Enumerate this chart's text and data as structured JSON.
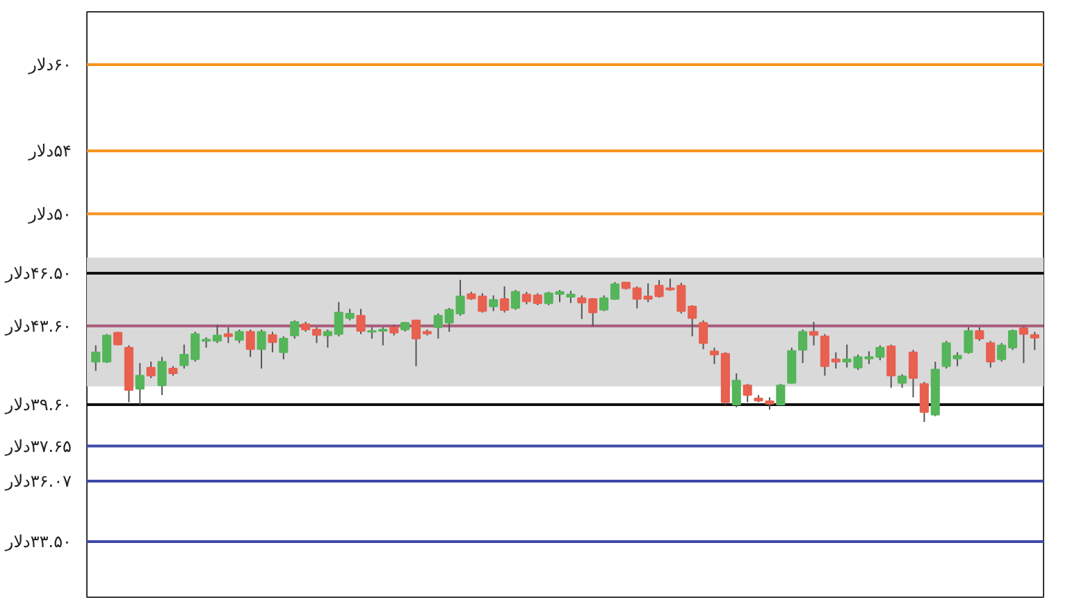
{
  "chart_data": {
    "type": "candlestick",
    "log": true,
    "grid": false,
    "ylim": [
      31.3,
      64
    ],
    "yticks": [
      {
        "value": 60,
        "label": "۶۰دلار"
      },
      {
        "value": 54,
        "label": "۵۴دلار"
      },
      {
        "value": 50,
        "label": "۵۰دلار"
      },
      {
        "value": 46.5,
        "label": "۴۶.۵۰دلار"
      },
      {
        "value": 43.6,
        "label": "۴۳.۶۰دلار"
      },
      {
        "value": 39.6,
        "label": "۳۹.۶۰دلار"
      },
      {
        "value": 37.65,
        "label": "۳۷.۶۵دلار"
      },
      {
        "value": 36.07,
        "label": "۳۶.۰۷دلار"
      },
      {
        "value": 33.5,
        "label": "۳۳.۵۰دلار"
      }
    ],
    "bands": [
      {
        "axis": "y",
        "from": 40.5,
        "to": 47.4,
        "color": "#d9d9d9"
      }
    ],
    "ref_lines": [
      {
        "axis": "y",
        "value": 60,
        "color": "#f7941d"
      },
      {
        "axis": "y",
        "value": 54,
        "color": "#f7941d"
      },
      {
        "axis": "y",
        "value": 50,
        "color": "#f7941d"
      },
      {
        "axis": "y",
        "value": 46.5,
        "color": "#111111"
      },
      {
        "axis": "y",
        "value": 43.6,
        "color": "#a85a7a"
      },
      {
        "axis": "y",
        "value": 39.6,
        "color": "#111111"
      },
      {
        "axis": "y",
        "value": 37.65,
        "color": "#3f4aa8"
      },
      {
        "axis": "y",
        "value": 36.07,
        "color": "#3f4aa8"
      },
      {
        "axis": "y",
        "value": 33.5,
        "color": "#3f4aa8"
      }
    ],
    "categories": [
      null,
      null,
      null,
      null,
      null,
      null,
      null,
      null,
      null,
      null,
      null,
      null,
      null,
      null,
      null,
      null,
      null,
      null,
      null,
      null,
      null,
      null,
      null,
      null,
      null,
      null,
      null,
      null,
      null,
      null,
      null,
      null,
      null,
      null,
      null,
      null,
      null,
      null,
      null,
      null,
      null,
      null,
      null,
      null,
      null,
      null,
      null,
      null,
      null,
      null,
      null,
      null,
      null,
      null,
      null,
      null,
      null,
      null,
      null,
      null,
      null,
      null,
      null,
      null,
      null,
      null,
      null,
      null,
      null,
      null,
      null,
      null,
      null,
      null,
      null,
      null,
      null,
      null,
      null,
      null,
      null,
      null,
      null,
      null,
      null,
      null
    ],
    "ohlc": [
      [
        41.74,
        42.58,
        41.27,
        42.22
      ],
      [
        41.74,
        43.17,
        41.67,
        43.1
      ],
      [
        43.24,
        43.29,
        42.58,
        42.62
      ],
      [
        42.46,
        42.58,
        39.72,
        40.32
      ],
      [
        40.38,
        41.67,
        39.6,
        41.03
      ],
      [
        41.44,
        41.74,
        40.91,
        41.03
      ],
      [
        40.55,
        41.98,
        40.07,
        41.74
      ],
      [
        41.39,
        41.51,
        41.03,
        41.15
      ],
      [
        41.55,
        42.62,
        41.39,
        42.1
      ],
      [
        41.86,
        43.29,
        41.74,
        43.17
      ],
      [
        42.81,
        43.0,
        42.46,
        42.88
      ],
      [
        42.81,
        43.65,
        42.7,
        43.1
      ],
      [
        43.17,
        43.53,
        42.7,
        43.05
      ],
      [
        42.86,
        43.41,
        42.7,
        43.29
      ],
      [
        43.29,
        43.41,
        41.98,
        42.38
      ],
      [
        42.38,
        43.41,
        41.39,
        43.29
      ],
      [
        43.12,
        43.29,
        42.22,
        42.74
      ],
      [
        42.22,
        43.05,
        41.86,
        42.93
      ],
      [
        43.1,
        43.9,
        42.93,
        43.82
      ],
      [
        43.7,
        43.82,
        43.29,
        43.41
      ],
      [
        43.41,
        43.53,
        42.7,
        43.12
      ],
      [
        43.1,
        43.41,
        42.46,
        43.29
      ],
      [
        43.17,
        44.89,
        43.05,
        44.32
      ],
      [
        44.02,
        44.52,
        43.9,
        44.27
      ],
      [
        44.15,
        44.52,
        43.17,
        43.34
      ],
      [
        43.29,
        43.53,
        42.93,
        43.34
      ],
      [
        43.34,
        43.53,
        42.58,
        43.41
      ],
      [
        43.53,
        43.65,
        43.1,
        43.24
      ],
      [
        43.41,
        43.82,
        43.3,
        43.77
      ],
      [
        43.9,
        43.9,
        41.51,
        42.93
      ],
      [
        43.29,
        43.41,
        43.1,
        43.2
      ],
      [
        43.53,
        44.27,
        42.93,
        44.15
      ],
      [
        43.77,
        44.57,
        43.29,
        44.47
      ],
      [
        44.27,
        46.12,
        44.15,
        45.21
      ],
      [
        45.33,
        45.46,
        45.01,
        45.08
      ],
      [
        45.21,
        45.38,
        44.32,
        44.4
      ],
      [
        44.65,
        45.26,
        44.4,
        45.01
      ],
      [
        45.06,
        45.76,
        44.32,
        44.45
      ],
      [
        44.57,
        45.56,
        44.47,
        45.46
      ],
      [
        45.31,
        45.46,
        44.77,
        44.93
      ],
      [
        45.26,
        45.38,
        44.72,
        44.82
      ],
      [
        44.82,
        45.46,
        44.72,
        45.38
      ],
      [
        45.33,
        45.56,
        44.89,
        45.46
      ],
      [
        45.18,
        45.51,
        44.84,
        45.31
      ],
      [
        45.11,
        45.26,
        43.97,
        44.86
      ],
      [
        45.06,
        45.11,
        43.58,
        44.32
      ],
      [
        44.47,
        45.26,
        44.4,
        45.11
      ],
      [
        45.06,
        46.0,
        45.01,
        45.88
      ],
      [
        45.98,
        46.0,
        45.58,
        45.66
      ],
      [
        45.66,
        45.76,
        44.55,
        45.06
      ],
      [
        45.21,
        45.93,
        44.89,
        45.06
      ],
      [
        45.81,
        46.12,
        45.14,
        45.21
      ],
      [
        45.66,
        46.2,
        45.51,
        45.58
      ],
      [
        45.81,
        45.96,
        44.27,
        44.4
      ],
      [
        44.65,
        44.72,
        43.05,
        44.02
      ],
      [
        43.77,
        43.9,
        42.38,
        42.7
      ],
      [
        42.27,
        42.46,
        41.62,
        42.1
      ],
      [
        42.15,
        42.22,
        39.6,
        39.72
      ],
      [
        39.6,
        41.15,
        39.48,
        40.79
      ],
      [
        40.55,
        40.62,
        39.72,
        40.07
      ],
      [
        39.91,
        40.07,
        39.72,
        39.8
      ],
      [
        39.77,
        39.96,
        39.36,
        39.65
      ],
      [
        39.6,
        40.62,
        39.6,
        40.55
      ],
      [
        40.67,
        42.46,
        40.62,
        42.29
      ],
      [
        42.34,
        43.41,
        41.67,
        43.29
      ],
      [
        43.29,
        43.82,
        42.58,
        43.12
      ],
      [
        43.05,
        43.17,
        41.03,
        41.51
      ],
      [
        41.86,
        42.22,
        41.39,
        41.74
      ],
      [
        41.74,
        42.62,
        41.44,
        41.86
      ],
      [
        41.44,
        42.1,
        41.32,
        41.98
      ],
      [
        41.9,
        42.27,
        41.62,
        41.98
      ],
      [
        41.98,
        42.58,
        41.81,
        42.46
      ],
      [
        42.53,
        42.62,
        40.43,
        41.03
      ],
      [
        40.67,
        41.1,
        40.43,
        41.0
      ],
      [
        42.22,
        42.34,
        39.96,
        40.91
      ],
      [
        40.62,
        40.72,
        38.77,
        39.24
      ],
      [
        39.12,
        41.74,
        39.05,
        41.34
      ],
      [
        41.51,
        42.81,
        41.39,
        42.7
      ],
      [
        41.9,
        42.22,
        41.51,
        42.05
      ],
      [
        42.22,
        43.53,
        42.15,
        43.34
      ],
      [
        43.34,
        43.53,
        42.81,
        42.93
      ],
      [
        42.7,
        42.81,
        41.44,
        41.74
      ],
      [
        41.86,
        42.7,
        41.74,
        42.58
      ],
      [
        42.46,
        43.41,
        42.34,
        43.34
      ],
      [
        43.48,
        43.58,
        41.67,
        43.17
      ],
      [
        43.12,
        43.29,
        42.34,
        42.98
      ]
    ],
    "colors": [
      "#55b55a",
      "#55b55a",
      "#e8604f",
      "#e8604f",
      "#55b55a",
      "#e8604f",
      "#55b55a",
      "#e8604f",
      "#55b55a",
      "#55b55a",
      "#55b55a",
      "#55b55a",
      "#e8604f",
      "#55b55a",
      "#e8604f",
      "#55b55a",
      "#e8604f",
      "#55b55a",
      "#55b55a",
      "#e8604f",
      "#e8604f",
      "#55b55a",
      "#55b55a",
      "#55b55a",
      "#e8604f",
      "#55b55a",
      "#55b55a",
      "#e8604f",
      "#55b55a",
      "#e8604f",
      "#e8604f",
      "#55b55a",
      "#55b55a",
      "#55b55a",
      "#e8604f",
      "#e8604f",
      "#55b55a",
      "#e8604f",
      "#55b55a",
      "#e8604f",
      "#e8604f",
      "#55b55a",
      "#55b55a",
      "#55b55a",
      "#e8604f",
      "#e8604f",
      "#55b55a",
      "#55b55a",
      "#e8604f",
      "#e8604f",
      "#e8604f",
      "#e8604f",
      "#e8604f",
      "#e8604f",
      "#e8604f",
      "#e8604f",
      "#e8604f",
      "#e8604f",
      "#55b55a",
      "#e8604f",
      "#e8604f",
      "#e8604f",
      "#55b55a",
      "#55b55a",
      "#55b55a",
      "#e8604f",
      "#e8604f",
      "#e8604f",
      "#55b55a",
      "#55b55a",
      "#55b55a",
      "#55b55a",
      "#e8604f",
      "#55b55a",
      "#e8604f",
      "#e8604f",
      "#55b55a",
      "#55b55a",
      "#55b55a",
      "#55b55a",
      "#e8604f",
      "#e8604f",
      "#55b55a",
      "#55b55a",
      "#e8604f",
      "#e8604f"
    ]
  }
}
